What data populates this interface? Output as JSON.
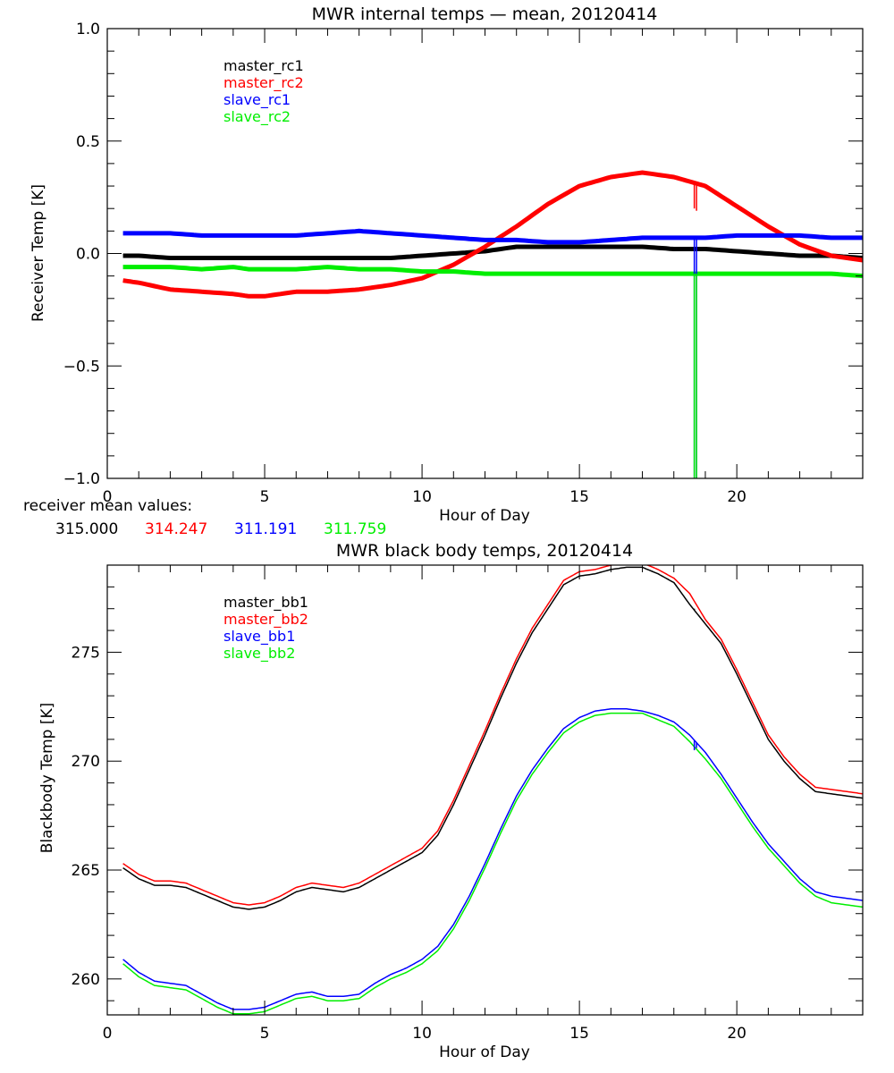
{
  "chart_data": [
    {
      "type": "line",
      "title": "MWR internal temps — mean, 20120414",
      "xlabel": "Hour of Day",
      "ylabel": "Receiver Temp [K]",
      "xlim": [
        0,
        24
      ],
      "ylim": [
        -1.0,
        1.0
      ],
      "x_major_ticks": [
        0,
        5,
        10,
        15,
        20
      ],
      "x_tick_labels": [
        "0",
        "5",
        "10",
        "15",
        "20"
      ],
      "x_minor_step": 1,
      "y_major_ticks": [
        -1.0,
        -0.5,
        0.0,
        0.5,
        1.0
      ],
      "y_tick_labels": [
        "−1.0",
        "−0.5",
        "0.0",
        "0.5",
        "1.0"
      ],
      "y_minor_step": 0.1,
      "grid": false,
      "legend_position": "top-left",
      "x": [
        0.5,
        1,
        2,
        3,
        4,
        4.5,
        5,
        6,
        7,
        8,
        9,
        10,
        11,
        12,
        13,
        14,
        15,
        16,
        17,
        18,
        18.5,
        19,
        20,
        21,
        22,
        23,
        24
      ],
      "series": [
        {
          "name": "master_rc1",
          "color": "#000000",
          "values": [
            -0.01,
            -0.01,
            -0.02,
            -0.02,
            -0.02,
            -0.02,
            -0.02,
            -0.02,
            -0.02,
            -0.02,
            -0.02,
            -0.01,
            0.0,
            0.01,
            0.03,
            0.03,
            0.03,
            0.03,
            0.03,
            0.02,
            0.02,
            0.02,
            0.01,
            0.0,
            -0.01,
            -0.01,
            -0.02
          ]
        },
        {
          "name": "master_rc2",
          "color": "#ff0000",
          "values": [
            -0.12,
            -0.13,
            -0.16,
            -0.17,
            -0.18,
            -0.19,
            -0.19,
            -0.17,
            -0.17,
            -0.16,
            -0.14,
            -0.11,
            -0.05,
            0.03,
            0.12,
            0.22,
            0.3,
            0.34,
            0.36,
            0.34,
            0.32,
            0.3,
            0.21,
            0.12,
            0.04,
            -0.01,
            -0.03
          ]
        },
        {
          "name": "slave_rc1",
          "color": "#0000ff",
          "values": [
            0.09,
            0.09,
            0.09,
            0.08,
            0.08,
            0.08,
            0.08,
            0.08,
            0.09,
            0.1,
            0.09,
            0.08,
            0.07,
            0.06,
            0.06,
            0.05,
            0.05,
            0.06,
            0.07,
            0.07,
            0.07,
            0.07,
            0.08,
            0.08,
            0.08,
            0.07,
            0.07
          ]
        },
        {
          "name": "slave_rc2",
          "color": "#00ff00",
          "values": [
            -0.06,
            -0.06,
            -0.06,
            -0.07,
            -0.06,
            -0.07,
            -0.07,
            -0.07,
            -0.06,
            -0.07,
            -0.07,
            -0.08,
            -0.08,
            -0.09,
            -0.09,
            -0.09,
            -0.09,
            -0.09,
            -0.09,
            -0.09,
            -0.09,
            -0.09,
            -0.09,
            -0.09,
            -0.09,
            -0.09,
            -0.1
          ]
        }
      ],
      "spikes": [
        {
          "series": "master_rc2",
          "x": 18.65,
          "to": 0.2
        },
        {
          "series": "master_rc2",
          "x": 18.72,
          "to": 0.19
        },
        {
          "series": "slave_rc1",
          "x": 18.65,
          "to": -1.0
        },
        {
          "series": "slave_rc1",
          "x": 18.72,
          "to": -1.0
        },
        {
          "series": "slave_rc2",
          "x": 18.65,
          "to": -1.0
        },
        {
          "series": "slave_rc2",
          "x": 18.72,
          "to": -1.0
        }
      ],
      "footer_label": "receiver mean values:",
      "footer_values": [
        {
          "text": "315.000",
          "color": "#000000"
        },
        {
          "text": "314.247",
          "color": "#ff0000"
        },
        {
          "text": "311.191",
          "color": "#0000ff"
        },
        {
          "text": "311.759",
          "color": "#00ff00"
        }
      ]
    },
    {
      "type": "line",
      "title": "MWR black body temps, 20120414",
      "xlabel": "Hour of Day",
      "ylabel": "Blackbody Temp [K]",
      "xlim": [
        0,
        24
      ],
      "ylim": [
        258.35,
        279.0
      ],
      "x_major_ticks": [
        0,
        5,
        10,
        15,
        20
      ],
      "x_tick_labels": [
        "0",
        "5",
        "10",
        "15",
        "20"
      ],
      "x_minor_step": 1,
      "y_major_ticks": [
        260,
        265,
        270,
        275
      ],
      "y_tick_labels": [
        "260",
        "265",
        "270",
        "275"
      ],
      "y_minor_step": 1,
      "grid": false,
      "legend_position": "top-left",
      "x": [
        0.5,
        1,
        1.5,
        2,
        2.5,
        3,
        3.5,
        4,
        4.5,
        5,
        5.5,
        6,
        6.5,
        7,
        7.5,
        8,
        8.5,
        9,
        9.5,
        10,
        10.5,
        11,
        11.5,
        12,
        12.5,
        13,
        13.5,
        14,
        14.5,
        15,
        15.5,
        16,
        16.5,
        17,
        17.5,
        18,
        18.5,
        19,
        19.5,
        20,
        20.5,
        21,
        21.5,
        22,
        22.5,
        23,
        23.5,
        24
      ],
      "series": [
        {
          "name": "master_bb1",
          "color": "#000000",
          "values": [
            265.1,
            264.6,
            264.3,
            264.3,
            264.2,
            263.9,
            263.6,
            263.3,
            263.2,
            263.3,
            263.6,
            264.0,
            264.2,
            264.1,
            264.0,
            264.2,
            264.6,
            265.0,
            265.4,
            265.8,
            266.6,
            268.0,
            269.6,
            271.2,
            272.9,
            274.5,
            275.9,
            277.0,
            278.1,
            278.5,
            278.6,
            278.8,
            278.9,
            278.9,
            278.6,
            278.2,
            277.2,
            276.3,
            275.4,
            274.0,
            272.5,
            271.0,
            270.0,
            269.2,
            268.6,
            268.5,
            268.4,
            268.3
          ]
        },
        {
          "name": "master_bb2",
          "color": "#ff0000",
          "values": [
            265.3,
            264.8,
            264.5,
            264.5,
            264.4,
            264.1,
            263.8,
            263.5,
            263.4,
            263.5,
            263.8,
            264.2,
            264.4,
            264.3,
            264.2,
            264.4,
            264.8,
            265.2,
            265.6,
            266.0,
            266.8,
            268.2,
            269.8,
            271.4,
            273.1,
            274.7,
            276.1,
            277.2,
            278.3,
            278.7,
            278.8,
            279.0,
            279.1,
            279.1,
            278.8,
            278.4,
            277.7,
            276.5,
            275.6,
            274.2,
            272.7,
            271.2,
            270.2,
            269.4,
            268.8,
            268.7,
            268.6,
            268.5
          ]
        },
        {
          "name": "slave_bb1",
          "color": "#0000ff",
          "values": [
            260.9,
            260.3,
            259.9,
            259.8,
            259.7,
            259.3,
            258.9,
            258.6,
            258.6,
            258.7,
            259.0,
            259.3,
            259.4,
            259.2,
            259.2,
            259.3,
            259.8,
            260.2,
            260.5,
            260.9,
            261.5,
            262.5,
            263.8,
            265.3,
            266.9,
            268.4,
            269.6,
            270.6,
            271.5,
            272.0,
            272.3,
            272.4,
            272.4,
            272.3,
            272.1,
            271.8,
            271.2,
            270.4,
            269.4,
            268.3,
            267.2,
            266.2,
            265.4,
            264.6,
            264.0,
            263.8,
            263.7,
            263.6
          ]
        },
        {
          "name": "slave_bb2",
          "color": "#00ff00",
          "values": [
            260.7,
            260.1,
            259.7,
            259.6,
            259.5,
            259.1,
            258.7,
            258.4,
            258.4,
            258.5,
            258.8,
            259.1,
            259.2,
            259.0,
            259.0,
            259.1,
            259.6,
            260.0,
            260.3,
            260.7,
            261.3,
            262.3,
            263.6,
            265.1,
            266.7,
            268.2,
            269.4,
            270.4,
            271.3,
            271.8,
            272.1,
            272.2,
            272.2,
            272.2,
            271.9,
            271.6,
            270.9,
            270.1,
            269.2,
            268.1,
            267.0,
            266.0,
            265.2,
            264.4,
            263.8,
            263.5,
            263.4,
            263.3
          ]
        }
      ],
      "spikes": [
        {
          "series": "master_bb1",
          "x": 18.65,
          "to": 277.0
        },
        {
          "series": "slave_bb1",
          "x": 18.65,
          "to": 270.5
        },
        {
          "series": "slave_bb1",
          "x": 18.72,
          "to": 270.6
        }
      ]
    }
  ]
}
